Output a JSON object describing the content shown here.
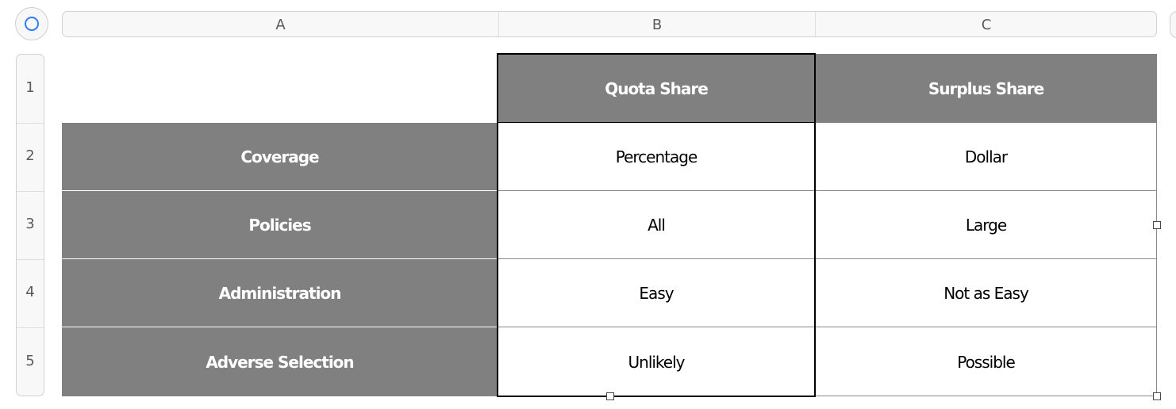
{
  "columns": [
    "A",
    "B",
    "C"
  ],
  "rows": [
    "1",
    "2",
    "3",
    "4",
    "5"
  ],
  "table": {
    "column_headers": [
      "Quota Share",
      "Surplus Share"
    ],
    "row_labels": [
      "Coverage",
      "Policies",
      "Administration",
      "Adverse Selection"
    ],
    "cells": [
      [
        "Percentage",
        "Dollar"
      ],
      [
        "All",
        "Large"
      ],
      [
        "Easy",
        "Not as Easy"
      ],
      [
        "Unlikely",
        "Possible"
      ]
    ]
  },
  "colors": {
    "header_fill": "#808080",
    "header_text": "#ffffff",
    "accent": "#2d7cf6"
  }
}
